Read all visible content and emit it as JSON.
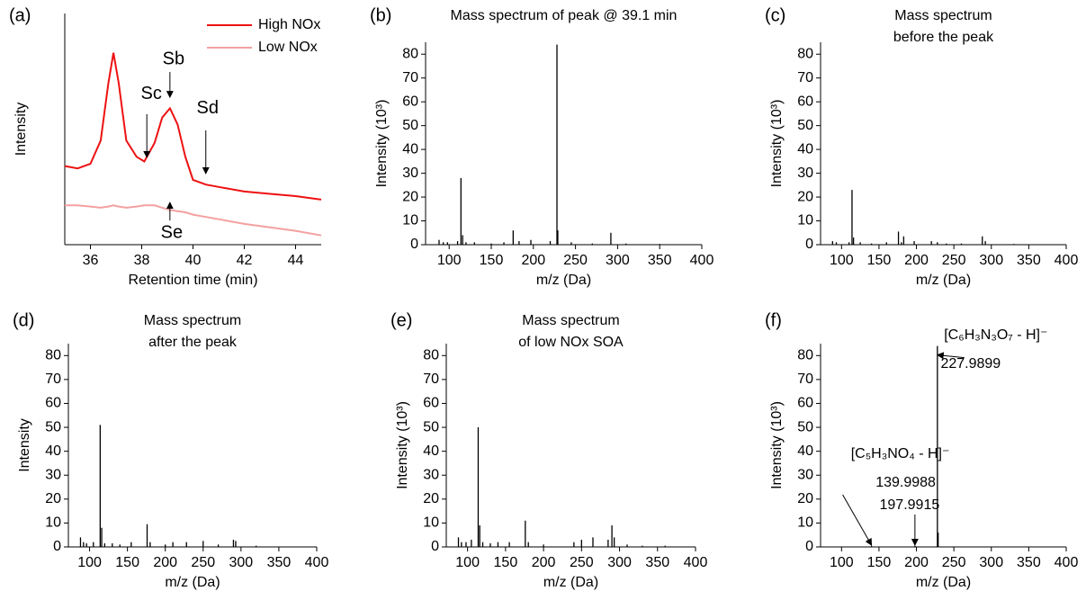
{
  "chart_data": [
    {
      "type": "line",
      "label": "(a)",
      "xlabel": "Retention time (min)",
      "ylabel": "Intensity",
      "xlim": [
        35,
        45
      ],
      "xticks": [
        36,
        38,
        40,
        42,
        44
      ],
      "ylim": [
        0,
        100
      ],
      "legend": "upper right",
      "x": [
        35,
        35.5,
        36,
        36.4,
        36.7,
        36.9,
        37.1,
        37.4,
        37.8,
        38.1,
        38.5,
        38.8,
        39.1,
        39.4,
        39.7,
        40,
        40.5,
        41,
        42,
        43,
        44,
        45
      ],
      "series": [
        {
          "name": "High NOx",
          "color": "#ee1111",
          "values": [
            34,
            33,
            35,
            45,
            70,
            83,
            70,
            45,
            38,
            36,
            44,
            55,
            59,
            52,
            38,
            28,
            26,
            25,
            23,
            22,
            21,
            19.5
          ]
        },
        {
          "name": "Low NOx",
          "color": "#f4a0a0",
          "values": [
            17,
            17,
            16.5,
            16,
            16.5,
            17,
            16.5,
            16,
            16.5,
            17,
            17,
            16,
            15,
            14.5,
            14,
            13,
            12,
            11,
            9,
            7.5,
            6,
            4
          ]
        }
      ],
      "annotations": [
        {
          "lines": [
            "Sb"
          ],
          "x": 39.1,
          "y": 63
        },
        {
          "lines": [
            "Sc"
          ],
          "x": 38.2,
          "y": 37
        },
        {
          "lines": [
            "Sd"
          ],
          "x": 40.5,
          "y": 30
        },
        {
          "lines": [
            "Se"
          ],
          "x": 39.1,
          "y": 19
        }
      ]
    },
    {
      "type": "bar",
      "label": "(b)",
      "title": [
        "Mass spectrum of peak @ 39.1 min"
      ],
      "xlabel": "m/z (Da)",
      "ylabel": "Intensity (10³)",
      "xlim": [
        72,
        400
      ],
      "xticks": [
        100,
        150,
        200,
        250,
        300,
        350,
        400
      ],
      "ylim": [
        0,
        85
      ],
      "yticks": [
        0,
        10,
        20,
        30,
        40,
        50,
        60,
        70,
        80
      ],
      "color": "#000000",
      "x": [
        88,
        93,
        98,
        110,
        114,
        116,
        120,
        130,
        150,
        165,
        176,
        183,
        197,
        220,
        228,
        229,
        245,
        270,
        292,
        310,
        350
      ],
      "values": [
        2,
        1,
        1,
        1.5,
        28,
        4,
        1,
        1,
        0.5,
        1,
        6,
        1.5,
        2,
        1.5,
        84,
        6,
        1,
        0.5,
        5,
        0.5,
        0.3
      ]
    },
    {
      "type": "bar",
      "label": "(c)",
      "title": [
        "Mass spectrum",
        "before the peak"
      ],
      "xlabel": "m/z (Da)",
      "ylabel": "Intensity (10³)",
      "xlim": [
        72,
        400
      ],
      "xticks": [
        100,
        150,
        200,
        250,
        300,
        350,
        400
      ],
      "ylim": [
        0,
        85
      ],
      "yticks": [
        0,
        10,
        20,
        30,
        40,
        50,
        60,
        70,
        80
      ],
      "color": "#000000",
      "x": [
        88,
        93,
        110,
        114,
        116,
        125,
        140,
        160,
        176,
        180,
        183,
        197,
        220,
        228,
        240,
        260,
        288,
        292,
        330
      ],
      "values": [
        1.5,
        1,
        1,
        23,
        3,
        1,
        0.5,
        1,
        5.5,
        1,
        3.5,
        1.5,
        1.5,
        1,
        0.5,
        0.5,
        3.5,
        1.5,
        0.3
      ]
    },
    {
      "type": "bar",
      "label": "(d)",
      "title": [
        "Mass spectrum",
        "after the peak"
      ],
      "xlabel": "m/z (Da)",
      "ylabel": "Intensity",
      "xlim": [
        72,
        400
      ],
      "xticks": [
        100,
        150,
        200,
        250,
        300,
        350,
        400
      ],
      "ylim": [
        0,
        85
      ],
      "yticks": [
        0,
        10,
        20,
        30,
        40,
        50,
        60,
        70,
        80
      ],
      "color": "#000000",
      "x": [
        88,
        92,
        96,
        105,
        114,
        116,
        120,
        130,
        140,
        155,
        176,
        180,
        200,
        210,
        228,
        250,
        270,
        290,
        293,
        320
      ],
      "values": [
        4,
        2,
        1.5,
        2,
        51,
        8,
        1.5,
        1.5,
        1,
        2,
        9.5,
        2,
        1,
        2,
        2,
        2.5,
        1,
        3,
        2.5,
        0.5
      ]
    },
    {
      "type": "bar",
      "label": "(e)",
      "title": [
        "Mass spectrum",
        "of low NOx SOA"
      ],
      "xlabel": "m/z (Da)",
      "ylabel": "Intensity (10³)",
      "xlim": [
        72,
        400
      ],
      "xticks": [
        100,
        150,
        200,
        250,
        300,
        350,
        400
      ],
      "ylim": [
        0,
        85
      ],
      "yticks": [
        0,
        10,
        20,
        30,
        40,
        50,
        60,
        70,
        80
      ],
      "color": "#000000",
      "x": [
        88,
        92,
        98,
        105,
        114,
        116,
        120,
        130,
        140,
        155,
        176,
        180,
        200,
        240,
        250,
        265,
        285,
        290,
        293,
        310,
        330,
        360
      ],
      "values": [
        4,
        2,
        2,
        3,
        50,
        9,
        2,
        1.5,
        2,
        2,
        11,
        2,
        1,
        2,
        3,
        4,
        3,
        9,
        4,
        1,
        0.5,
        0.5
      ]
    },
    {
      "type": "bar",
      "label": "(f)",
      "xlabel": "m/z (Da)",
      "ylabel": "Intensity (10³)",
      "xlim": [
        72,
        400
      ],
      "xticks": [
        100,
        150,
        200,
        250,
        300,
        350,
        400
      ],
      "ylim": [
        0,
        85
      ],
      "yticks": [
        0,
        10,
        20,
        30,
        40,
        50,
        60,
        70,
        80
      ],
      "color": "#000000",
      "x": [
        140,
        198,
        228,
        229
      ],
      "values": [
        0.5,
        0.5,
        84,
        6
      ],
      "annotations": [
        {
          "lines": [
            "[C₆H₃N₃O₇ - H]⁻",
            "227.9899"
          ],
          "x": 228,
          "y": 81
        },
        {
          "lines": [
            "[C₅H₃NO₄ - H]⁻",
            "139.9988"
          ],
          "x": 140,
          "y": 0
        },
        {
          "lines": [
            "197.9915"
          ],
          "x": 198,
          "y": 0
        }
      ]
    }
  ]
}
